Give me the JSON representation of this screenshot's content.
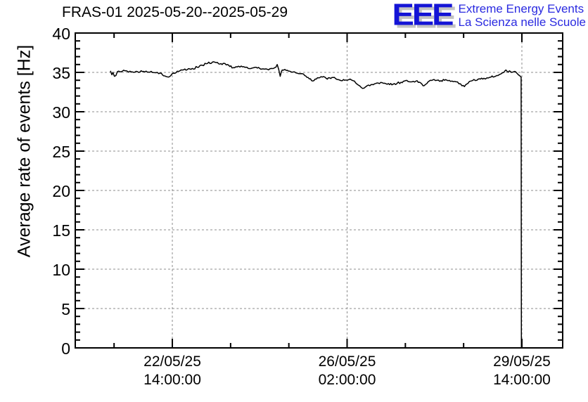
{
  "header": {
    "title": "FRAS-01 2025-05-20--2025-05-29",
    "logo": {
      "acronym": "EEE",
      "line1": "Extreme Energy Events",
      "line2": "La Scienza nelle Scuole",
      "color": "#2a2ae0",
      "shadow_color": "#c3c3c3"
    }
  },
  "chart_data": {
    "type": "line",
    "title": "FRAS-01 2025-05-20--2025-05-29",
    "xlabel": "",
    "ylabel": "Average rate of events [Hz]",
    "ylim": [
      0,
      40
    ],
    "y_major_step": 5,
    "y_minor_step": 1,
    "y_tick_labels": [
      "0",
      "5",
      "10",
      "15",
      "20",
      "25",
      "30",
      "35",
      "40"
    ],
    "xlim_t_days": [
      -1.944,
      7.817
    ],
    "x_ticks": [
      {
        "t": 0.0,
        "line1": "22/05/25",
        "line2": "14:00:00"
      },
      {
        "t": 3.5,
        "line1": "26/05/25",
        "line2": "02:00:00"
      },
      {
        "t": 7.0,
        "line1": "29/05/25",
        "line2": "14:00:00"
      }
    ],
    "x_minor_ticks_t": [
      -1.1667,
      1.1667,
      2.3333,
      4.6667,
      5.8333
    ],
    "grid": "dashed gray lines at major ticks, both axes",
    "legend": "none",
    "line_color": "#000000",
    "grid_color": "#8c8c8c",
    "noise_amplitude": 0.13,
    "series": [
      {
        "name": "average rate of events",
        "units": "Hz",
        "t_units": "days since 22/05/25 14:00:00",
        "points": [
          [
            -1.24,
            35.2
          ],
          [
            -1.21,
            34.7
          ],
          [
            -1.19,
            35.0
          ],
          [
            -1.16,
            34.5
          ],
          [
            -1.13,
            34.6
          ],
          [
            -1.1,
            35.1
          ],
          [
            -1.0,
            35.15
          ],
          [
            -0.85,
            35.15
          ],
          [
            -0.7,
            35.1
          ],
          [
            -0.55,
            35.05
          ],
          [
            -0.4,
            35.0
          ],
          [
            -0.3,
            35.0
          ],
          [
            -0.22,
            34.9
          ],
          [
            -0.15,
            34.55
          ],
          [
            -0.08,
            34.4
          ],
          [
            -0.03,
            34.6
          ],
          [
            0.02,
            34.9
          ],
          [
            0.1,
            35.15
          ],
          [
            0.2,
            35.3
          ],
          [
            0.3,
            35.35
          ],
          [
            0.4,
            35.5
          ],
          [
            0.5,
            35.65
          ],
          [
            0.6,
            35.9
          ],
          [
            0.68,
            36.1
          ],
          [
            0.73,
            36.3
          ],
          [
            0.78,
            36.15
          ],
          [
            0.83,
            36.35
          ],
          [
            0.88,
            36.25
          ],
          [
            0.95,
            36.05
          ],
          [
            1.02,
            36.15
          ],
          [
            1.08,
            35.95
          ],
          [
            1.15,
            35.75
          ],
          [
            1.22,
            35.6
          ],
          [
            1.3,
            35.7
          ],
          [
            1.38,
            35.8
          ],
          [
            1.45,
            35.65
          ],
          [
            1.52,
            35.5
          ],
          [
            1.6,
            35.55
          ],
          [
            1.68,
            35.65
          ],
          [
            1.75,
            35.5
          ],
          [
            1.82,
            35.45
          ],
          [
            1.9,
            35.4
          ],
          [
            1.98,
            35.5
          ],
          [
            2.05,
            35.6
          ],
          [
            2.1,
            36.0
          ],
          [
            2.13,
            35.4
          ],
          [
            2.16,
            34.5
          ],
          [
            2.2,
            35.3
          ],
          [
            2.28,
            35.25
          ],
          [
            2.35,
            35.15
          ],
          [
            2.42,
            35.05
          ],
          [
            2.5,
            34.9
          ],
          [
            2.58,
            34.85
          ],
          [
            2.65,
            34.6
          ],
          [
            2.72,
            34.35
          ],
          [
            2.79,
            33.95
          ],
          [
            2.86,
            34.15
          ],
          [
            2.93,
            34.3
          ],
          [
            3.0,
            34.4
          ],
          [
            3.08,
            34.25
          ],
          [
            3.15,
            34.3
          ],
          [
            3.22,
            34.35
          ],
          [
            3.3,
            34.1
          ],
          [
            3.38,
            33.95
          ],
          [
            3.45,
            34.0
          ],
          [
            3.5,
            34.0
          ],
          [
            3.56,
            34.15
          ],
          [
            3.62,
            33.95
          ],
          [
            3.7,
            33.5
          ],
          [
            3.78,
            33.1
          ],
          [
            3.84,
            33.0
          ],
          [
            3.9,
            33.3
          ],
          [
            3.98,
            33.45
          ],
          [
            4.05,
            33.55
          ],
          [
            4.12,
            33.65
          ],
          [
            4.2,
            33.7
          ],
          [
            4.28,
            33.55
          ],
          [
            4.35,
            33.45
          ],
          [
            4.42,
            33.5
          ],
          [
            4.5,
            33.6
          ],
          [
            4.58,
            33.75
          ],
          [
            4.65,
            33.9
          ],
          [
            4.72,
            33.85
          ],
          [
            4.8,
            33.8
          ],
          [
            4.88,
            33.9
          ],
          [
            4.95,
            33.75
          ],
          [
            5.0,
            33.5
          ],
          [
            5.04,
            33.3
          ],
          [
            5.1,
            33.6
          ],
          [
            5.17,
            34.0
          ],
          [
            5.24,
            34.1
          ],
          [
            5.3,
            34.0
          ],
          [
            5.38,
            33.95
          ],
          [
            5.45,
            34.0
          ],
          [
            5.52,
            33.95
          ],
          [
            5.6,
            33.9
          ],
          [
            5.68,
            33.8
          ],
          [
            5.74,
            33.55
          ],
          [
            5.8,
            33.3
          ],
          [
            5.85,
            33.2
          ],
          [
            5.92,
            33.6
          ],
          [
            5.98,
            33.9
          ],
          [
            6.04,
            34.1
          ],
          [
            6.1,
            34.0
          ],
          [
            6.17,
            34.15
          ],
          [
            6.24,
            34.25
          ],
          [
            6.3,
            34.3
          ],
          [
            6.38,
            34.4
          ],
          [
            6.45,
            34.45
          ],
          [
            6.52,
            34.6
          ],
          [
            6.58,
            34.8
          ],
          [
            6.64,
            35.0
          ],
          [
            6.68,
            35.3
          ],
          [
            6.71,
            35.1
          ],
          [
            6.75,
            35.2
          ],
          [
            6.79,
            35.0
          ],
          [
            6.83,
            35.05
          ],
          [
            6.87,
            35.1
          ],
          [
            6.9,
            34.9
          ],
          [
            6.93,
            34.7
          ],
          [
            6.96,
            34.55
          ],
          [
            6.985,
            34.4
          ],
          [
            6.99,
            0.0
          ]
        ]
      }
    ]
  }
}
